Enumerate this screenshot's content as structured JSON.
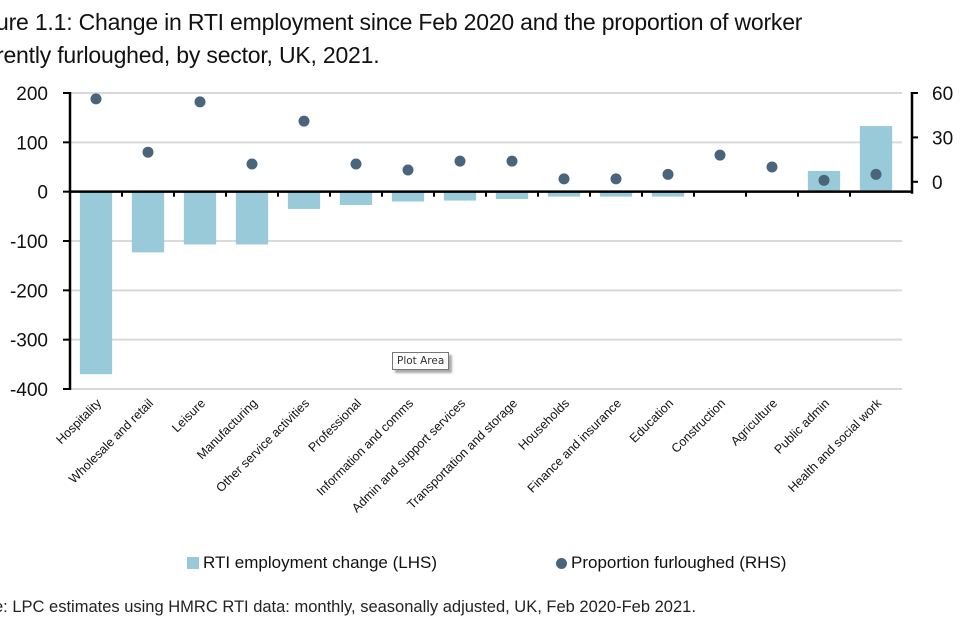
{
  "title_lines": [
    "ure 1.1: Change in RTI employment since Feb 2020 and the proportion of worker",
    "rently furloughed, by sector, UK, 2021."
  ],
  "tooltip": "Plot Area",
  "legend": {
    "bar_label": "RTI employment change (LHS)",
    "dot_label": "Proportion furloughed (RHS)"
  },
  "source": "e: LPC estimates using HMRC RTI data: monthly, seasonally adjusted, UK, Feb 2020-Feb 2021.",
  "colors": {
    "bar": "#98cad9",
    "dot": "#4a647c",
    "grid": "#d9d9d9",
    "axis": "#000000"
  },
  "chart_data": {
    "type": "bar",
    "title": "Change in RTI employment since Feb 2020 and the proportion of workers currently furloughed, by sector, UK, 2021.",
    "categories": [
      "Hospitality",
      "Wholesale and retail",
      "Leisure",
      "Manufacturing",
      "Other service activities",
      "Professional",
      "Information and comms",
      "Admin and support services",
      "Transportation and storage",
      "Households",
      "Finance and insurance",
      "Education",
      "Construction",
      "Agriculture",
      "Public admin",
      "Health and social work"
    ],
    "series": [
      {
        "name": "RTI employment change (LHS)",
        "type": "bar",
        "axis": "left",
        "values": [
          -370,
          -123,
          -107,
          -107,
          -35,
          -27,
          -20,
          -18,
          -15,
          -10,
          -10,
          -10,
          0,
          0,
          42,
          133
        ]
      },
      {
        "name": "Proportion furloughed (RHS)",
        "type": "scatter",
        "axis": "right",
        "values": [
          56,
          20,
          54,
          12,
          41,
          12,
          8,
          14,
          14,
          2,
          2,
          5,
          18,
          10,
          1,
          5
        ]
      }
    ],
    "left_axis": {
      "ylim": [
        -400,
        200
      ],
      "ticks": [
        "200",
        "100",
        "0",
        "-100",
        "-200",
        "-300",
        "-400"
      ]
    },
    "right_axis": {
      "ylim": [
        -140,
        60
      ],
      "ticks": [
        "60",
        "30",
        "0"
      ]
    },
    "xlabel": "",
    "ylabel": "",
    "grid": true,
    "legend_position": "bottom"
  }
}
